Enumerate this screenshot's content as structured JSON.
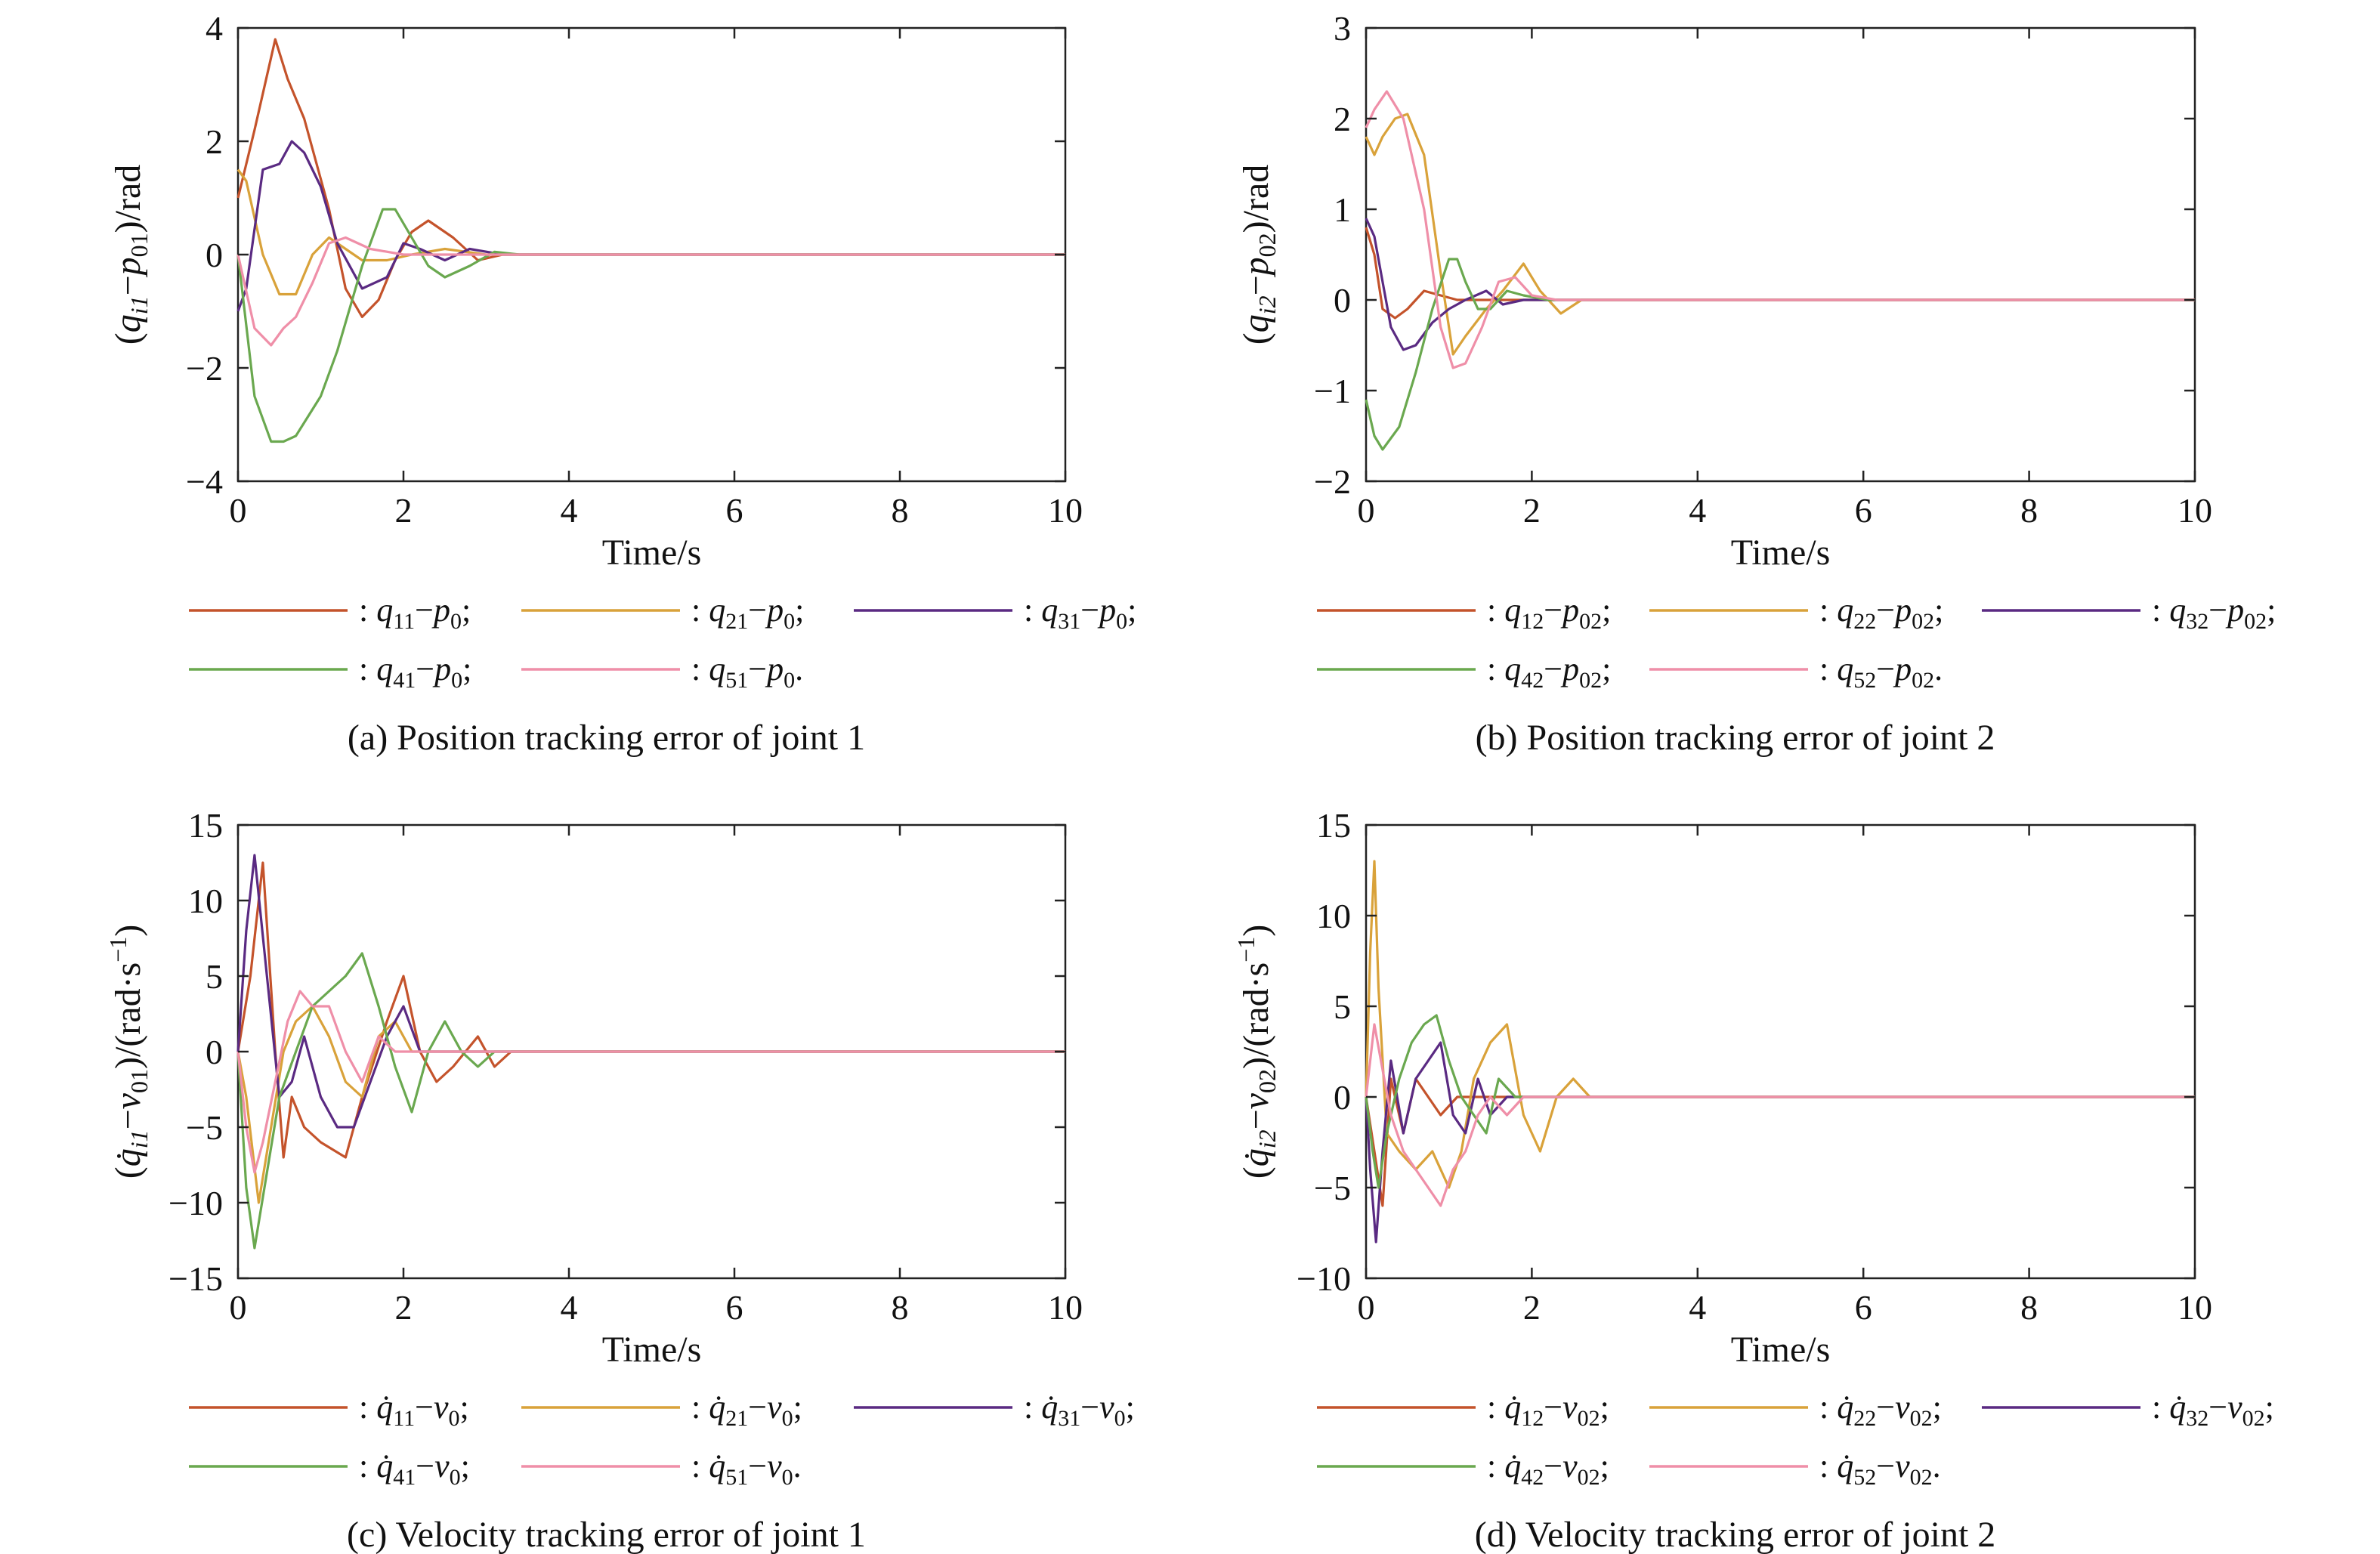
{
  "series_colors": [
    "#c4532b",
    "#d9a23a",
    "#5a2a82",
    "#6aa84f",
    "#ef8fa8"
  ],
  "charts": [
    {
      "id": "a",
      "caption": "(a) Position tracking error of joint 1",
      "xlabel": "Time/s",
      "ylabel": {
        "open": "(",
        "q": "q",
        "qsub": "i1",
        "minus": "−",
        "p": "p",
        "psub": "01",
        "close": ")/rad"
      },
      "xticks": [
        "0",
        "2",
        "4",
        "6",
        "8",
        "10"
      ],
      "yticks": [
        "4",
        "2",
        "0",
        "−2",
        "−4"
      ],
      "legend": [
        {
          "q": "q",
          "sub": "11",
          "ref": "p",
          "refsub": "0",
          "end": ";"
        },
        {
          "q": "q",
          "sub": "21",
          "ref": "p",
          "refsub": "0",
          "end": ";"
        },
        {
          "q": "q",
          "sub": "31",
          "ref": "p",
          "refsub": "0",
          "end": ";"
        },
        {
          "q": "q",
          "sub": "41",
          "ref": "p",
          "refsub": "0",
          "end": ";"
        },
        {
          "q": "q",
          "sub": "51",
          "ref": "p",
          "refsub": "0",
          "end": "."
        }
      ]
    },
    {
      "id": "b",
      "caption": "(b) Position tracking error of joint 2",
      "xlabel": "Time/s",
      "ylabel": {
        "open": "(",
        "q": "q",
        "qsub": "i2",
        "minus": "−",
        "p": "p",
        "psub": "02",
        "close": ")/rad"
      },
      "xticks": [
        "0",
        "2",
        "4",
        "6",
        "8",
        "10"
      ],
      "yticks": [
        "3",
        "2",
        "1",
        "0",
        "−1",
        "−2"
      ],
      "legend": [
        {
          "q": "q",
          "sub": "12",
          "ref": "p",
          "refsub": "02",
          "end": ";"
        },
        {
          "q": "q",
          "sub": "22",
          "ref": "p",
          "refsub": "02",
          "end": ";"
        },
        {
          "q": "q",
          "sub": "32",
          "ref": "p",
          "refsub": "02",
          "end": ";"
        },
        {
          "q": "q",
          "sub": "42",
          "ref": "p",
          "refsub": "02",
          "end": ";"
        },
        {
          "q": "q",
          "sub": "52",
          "ref": "p",
          "refsub": "02",
          "end": "."
        }
      ]
    },
    {
      "id": "c",
      "caption": "(c) Velocity tracking error of joint 1",
      "xlabel": "Time/s",
      "ylabel": {
        "open": "(",
        "q": "q̇",
        "qsub": "i1",
        "minus": "−",
        "p": "v",
        "psub": "01",
        "close": ")/(rad·s",
        "sup": "−1",
        "tail": ")"
      },
      "xticks": [
        "0",
        "2",
        "4",
        "6",
        "8",
        "10"
      ],
      "yticks": [
        "15",
        "10",
        "5",
        "0",
        "−5",
        "−10",
        "−15"
      ],
      "legend": [
        {
          "q": "q̇",
          "sub": "11",
          "ref": "v",
          "refsub": "0",
          "end": ";"
        },
        {
          "q": "q̇",
          "sub": "21",
          "ref": "v",
          "refsub": "0",
          "end": ";"
        },
        {
          "q": "q̇",
          "sub": "31",
          "ref": "v",
          "refsub": "0",
          "end": ";"
        },
        {
          "q": "q̇",
          "sub": "41",
          "ref": "v",
          "refsub": "0",
          "end": ";"
        },
        {
          "q": "q̇",
          "sub": "51",
          "ref": "v",
          "refsub": "0",
          "end": "."
        }
      ]
    },
    {
      "id": "d",
      "caption": "(d) Velocity tracking error of joint 2",
      "xlabel": "Time/s",
      "ylabel": {
        "open": "(",
        "q": "q̇",
        "qsub": "i2",
        "minus": "−",
        "p": "v",
        "psub": "02",
        "close": ")/(rad·s",
        "sup": "−1",
        "tail": ")"
      },
      "xticks": [
        "0",
        "2",
        "4",
        "6",
        "8",
        "10"
      ],
      "yticks": [
        "15",
        "10",
        "5",
        "0",
        "−5",
        "−10"
      ],
      "legend": [
        {
          "q": "q̇",
          "sub": "12",
          "ref": "v",
          "refsub": "02",
          "end": ";"
        },
        {
          "q": "q̇",
          "sub": "22",
          "ref": "v",
          "refsub": "02",
          "end": ";"
        },
        {
          "q": "q̇",
          "sub": "32",
          "ref": "v",
          "refsub": "02",
          "end": ";"
        },
        {
          "q": "q̇",
          "sub": "42",
          "ref": "v",
          "refsub": "02",
          "end": ";"
        },
        {
          "q": "q̇",
          "sub": "52",
          "ref": "v",
          "refsub": "02",
          "end": "."
        }
      ]
    }
  ],
  "chart_data": [
    {
      "type": "line",
      "xlim": [
        0,
        10
      ],
      "ylim": [
        -4,
        4
      ],
      "grid": false,
      "series": [
        {
          "x": [
            0,
            0.2,
            0.45,
            0.6,
            0.8,
            1.1,
            1.3,
            1.5,
            1.7,
            1.9,
            2.1,
            2.3,
            2.6,
            2.9,
            3.2,
            3.5,
            10
          ],
          "y": [
            1.0,
            2.2,
            3.8,
            3.1,
            2.4,
            0.8,
            -0.6,
            -1.1,
            -0.8,
            -0.1,
            0.4,
            0.6,
            0.3,
            -0.1,
            0.0,
            0.0,
            0.0
          ]
        },
        {
          "x": [
            0,
            0.1,
            0.3,
            0.5,
            0.7,
            0.9,
            1.1,
            1.3,
            1.5,
            1.8,
            2.1,
            2.5,
            3.0,
            3.4,
            10
          ],
          "y": [
            1.5,
            1.3,
            0.0,
            -0.7,
            -0.7,
            0.0,
            0.3,
            0.1,
            -0.1,
            -0.1,
            0.0,
            0.1,
            0.0,
            0.0,
            0.0
          ]
        },
        {
          "x": [
            0,
            0.1,
            0.3,
            0.5,
            0.65,
            0.8,
            1.0,
            1.2,
            1.5,
            1.8,
            2.0,
            2.2,
            2.5,
            2.8,
            3.2,
            10
          ],
          "y": [
            -1.0,
            -0.6,
            1.5,
            1.6,
            2.0,
            1.8,
            1.2,
            0.2,
            -0.6,
            -0.4,
            0.2,
            0.1,
            -0.1,
            0.1,
            0.0,
            0.0
          ]
        },
        {
          "x": [
            0,
            0.2,
            0.4,
            0.55,
            0.7,
            1.0,
            1.2,
            1.5,
            1.75,
            1.9,
            2.1,
            2.3,
            2.5,
            2.8,
            3.1,
            3.4,
            10
          ],
          "y": [
            0.0,
            -2.5,
            -3.3,
            -3.3,
            -3.2,
            -2.5,
            -1.7,
            -0.2,
            0.8,
            0.8,
            0.3,
            -0.2,
            -0.4,
            -0.2,
            0.05,
            0.0,
            0.0
          ]
        },
        {
          "x": [
            0,
            0.2,
            0.4,
            0.55,
            0.7,
            0.9,
            1.1,
            1.3,
            1.6,
            2.0,
            2.4,
            2.8,
            3.2,
            10
          ],
          "y": [
            0.0,
            -1.3,
            -1.6,
            -1.3,
            -1.1,
            -0.5,
            0.2,
            0.3,
            0.1,
            0.0,
            0.0,
            0.0,
            0.0,
            0.0
          ]
        }
      ]
    },
    {
      "type": "line",
      "xlim": [
        0,
        10
      ],
      "ylim": [
        -2,
        3
      ],
      "grid": false,
      "series": [
        {
          "x": [
            0,
            0.1,
            0.2,
            0.35,
            0.5,
            0.7,
            0.9,
            1.1,
            1.3,
            1.6,
            2.0,
            2.4,
            10
          ],
          "y": [
            0.8,
            0.5,
            -0.1,
            -0.2,
            -0.1,
            0.1,
            0.05,
            0.0,
            0.0,
            0.0,
            0.0,
            0.0,
            0.0
          ]
        },
        {
          "x": [
            0,
            0.1,
            0.2,
            0.35,
            0.5,
            0.7,
            0.9,
            1.05,
            1.2,
            1.45,
            1.65,
            1.9,
            2.1,
            2.35,
            2.6,
            2.8,
            10
          ],
          "y": [
            1.8,
            1.6,
            1.8,
            2.0,
            2.05,
            1.6,
            0.3,
            -0.6,
            -0.4,
            -0.1,
            0.1,
            0.4,
            0.1,
            -0.15,
            0.0,
            0.0,
            0.0
          ]
        },
        {
          "x": [
            0,
            0.1,
            0.2,
            0.3,
            0.45,
            0.6,
            0.8,
            1.0,
            1.2,
            1.45,
            1.65,
            1.9,
            2.2,
            10
          ],
          "y": [
            0.9,
            0.7,
            0.2,
            -0.3,
            -0.55,
            -0.5,
            -0.25,
            -0.1,
            0.0,
            0.1,
            -0.05,
            0.0,
            0.0,
            0.0
          ]
        },
        {
          "x": [
            0,
            0.1,
            0.2,
            0.4,
            0.6,
            0.8,
            1.0,
            1.1,
            1.2,
            1.35,
            1.5,
            1.7,
            1.9,
            2.2,
            10
          ],
          "y": [
            -1.1,
            -1.5,
            -1.65,
            -1.4,
            -0.8,
            -0.1,
            0.45,
            0.45,
            0.2,
            -0.1,
            -0.1,
            0.1,
            0.05,
            0.0,
            0.0
          ]
        },
        {
          "x": [
            0,
            0.1,
            0.25,
            0.45,
            0.7,
            0.9,
            1.05,
            1.2,
            1.4,
            1.6,
            1.8,
            2.0,
            2.3,
            10
          ],
          "y": [
            1.9,
            2.1,
            2.3,
            2.0,
            1.0,
            -0.3,
            -0.75,
            -0.7,
            -0.3,
            0.2,
            0.25,
            0.05,
            0.0,
            0.0
          ]
        }
      ]
    },
    {
      "type": "line",
      "xlim": [
        0,
        10
      ],
      "ylim": [
        -15,
        15
      ],
      "grid": false,
      "series": [
        {
          "x": [
            0,
            0.15,
            0.3,
            0.45,
            0.55,
            0.65,
            0.8,
            1.0,
            1.3,
            1.5,
            1.8,
            2.0,
            2.2,
            2.4,
            2.6,
            2.9,
            3.1,
            3.3,
            3.5,
            10
          ],
          "y": [
            0,
            5,
            12.5,
            0,
            -7,
            -3,
            -5,
            -6,
            -7,
            -3,
            2,
            5,
            0,
            -2,
            -1,
            1,
            -1,
            0,
            0,
            0
          ]
        },
        {
          "x": [
            0,
            0.1,
            0.25,
            0.4,
            0.55,
            0.7,
            0.9,
            1.1,
            1.3,
            1.5,
            1.7,
            1.9,
            2.1,
            2.3,
            2.6,
            2.9,
            3.2,
            10
          ],
          "y": [
            0,
            -3,
            -10,
            -5,
            0,
            2,
            3,
            1,
            -2,
            -3,
            1,
            2,
            0,
            0,
            0,
            0,
            0,
            0
          ]
        },
        {
          "x": [
            0,
            0.1,
            0.2,
            0.35,
            0.5,
            0.65,
            0.8,
            1.0,
            1.2,
            1.4,
            1.6,
            1.8,
            2.0,
            2.2,
            2.5,
            2.8,
            3.1,
            10
          ],
          "y": [
            0,
            8,
            13,
            5,
            -3,
            -2,
            1,
            -3,
            -5,
            -5,
            -2,
            1,
            3,
            0,
            0,
            0,
            0,
            0
          ]
        },
        {
          "x": [
            0,
            0.1,
            0.2,
            0.35,
            0.5,
            0.7,
            0.9,
            1.1,
            1.3,
            1.5,
            1.7,
            1.9,
            2.1,
            2.3,
            2.5,
            2.7,
            2.9,
            3.1,
            3.3,
            10
          ],
          "y": [
            0,
            -9,
            -13,
            -8,
            -3,
            0,
            3,
            4,
            5,
            6.5,
            3,
            -1,
            -4,
            0,
            2,
            0,
            -1,
            0,
            0,
            0
          ]
        },
        {
          "x": [
            0,
            0.1,
            0.2,
            0.3,
            0.45,
            0.6,
            0.75,
            0.9,
            1.1,
            1.3,
            1.5,
            1.7,
            1.9,
            2.1,
            2.3,
            2.6,
            2.9,
            10
          ],
          "y": [
            0,
            -5,
            -8,
            -6,
            -2,
            2,
            4,
            3,
            3,
            0,
            -2,
            1,
            0,
            0,
            0,
            0,
            0,
            0
          ]
        }
      ]
    },
    {
      "type": "line",
      "xlim": [
        0,
        10
      ],
      "ylim": [
        -10,
        15
      ],
      "grid": false,
      "series": [
        {
          "x": [
            0,
            0.1,
            0.2,
            0.3,
            0.45,
            0.6,
            0.75,
            0.9,
            1.1,
            1.3,
            1.6,
            2.0,
            2.4,
            10
          ],
          "y": [
            0,
            -3,
            -6,
            1,
            -2,
            1,
            0,
            -1,
            0,
            0,
            0,
            0,
            0,
            0
          ]
        },
        {
          "x": [
            0,
            0.05,
            0.1,
            0.15,
            0.25,
            0.4,
            0.6,
            0.8,
            1.0,
            1.15,
            1.3,
            1.5,
            1.7,
            1.9,
            2.1,
            2.3,
            2.5,
            2.7,
            10
          ],
          "y": [
            0,
            8,
            13,
            6,
            -2,
            -3,
            -4,
            -3,
            -5,
            -3,
            1,
            3,
            4,
            -1,
            -3,
            0,
            1,
            0,
            0
          ]
        },
        {
          "x": [
            0,
            0.05,
            0.12,
            0.2,
            0.3,
            0.45,
            0.6,
            0.75,
            0.9,
            1.05,
            1.2,
            1.35,
            1.5,
            1.7,
            1.9,
            2.2,
            10
          ],
          "y": [
            0,
            -4,
            -8,
            -3,
            2,
            -2,
            1,
            2,
            3,
            -1,
            -2,
            1,
            -1,
            0,
            0,
            0,
            0
          ]
        },
        {
          "x": [
            0,
            0.08,
            0.15,
            0.25,
            0.4,
            0.55,
            0.7,
            0.85,
            1.0,
            1.15,
            1.3,
            1.45,
            1.6,
            1.8,
            2.0,
            2.2,
            2.5,
            10
          ],
          "y": [
            0,
            -3,
            -5,
            -2,
            1,
            3,
            4,
            4.5,
            2,
            0,
            -1,
            -2,
            1,
            0,
            0,
            0,
            0,
            0
          ]
        },
        {
          "x": [
            0,
            0.05,
            0.1,
            0.18,
            0.3,
            0.45,
            0.6,
            0.75,
            0.9,
            1.05,
            1.2,
            1.35,
            1.5,
            1.7,
            1.9,
            2.2,
            10
          ],
          "y": [
            0,
            2,
            4,
            2,
            -1,
            -3,
            -4,
            -5,
            -6,
            -4,
            -3,
            -1,
            0,
            -1,
            0,
            0,
            0
          ]
        }
      ]
    }
  ]
}
